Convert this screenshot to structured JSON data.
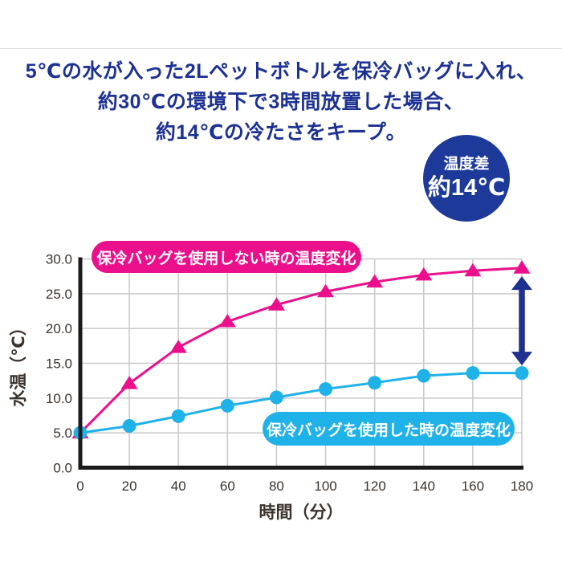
{
  "title": {
    "line1": "5℃の水が入った2Lペットボトルを保冷バッグに入れ、",
    "line2": "約30℃の環境下で3時間放置した場合、",
    "line3": "約14℃の冷たさをキープ。"
  },
  "badge": {
    "label": "温度差",
    "value": "約14℃"
  },
  "colors": {
    "navy": "#1d3a9b",
    "title_text": "#1c3193",
    "grid": "#c9c9c9",
    "axis": "#1a1a1a"
  },
  "chart_data": {
    "type": "line",
    "title": "",
    "xlabel": "時間（分）",
    "ylabel": "水温（℃）",
    "x": [
      0,
      20,
      40,
      60,
      80,
      100,
      120,
      140,
      160,
      180
    ],
    "xlim": [
      0,
      180
    ],
    "ylim": [
      0,
      30
    ],
    "xticks": [
      "0",
      "20",
      "40",
      "60",
      "80",
      "100",
      "120",
      "140",
      "160",
      "180"
    ],
    "yticks": [
      "0.0",
      "5.0",
      "10.0",
      "15.0",
      "20.0",
      "25.0",
      "30.0"
    ],
    "grid": true,
    "legend_position": "on-chart-pills",
    "series": [
      {
        "name": "保冷バッグを使用しない時の温度変化",
        "marker": "triangle",
        "color": "#ec0f8c",
        "values": [
          5.0,
          12.1,
          17.3,
          21.0,
          23.4,
          25.3,
          26.7,
          27.7,
          28.3,
          28.7
        ]
      },
      {
        "name": "保冷バッグを使用した時の温度変化",
        "marker": "circle",
        "color": "#1fb2e9",
        "values": [
          5.0,
          6.0,
          7.4,
          8.9,
          10.1,
          11.3,
          12.2,
          13.2,
          13.6,
          13.6
        ]
      }
    ],
    "annotation_arrow": {
      "x": 180,
      "y_top": 27.5,
      "y_bottom": 14.7,
      "color": "#1e3192"
    }
  }
}
